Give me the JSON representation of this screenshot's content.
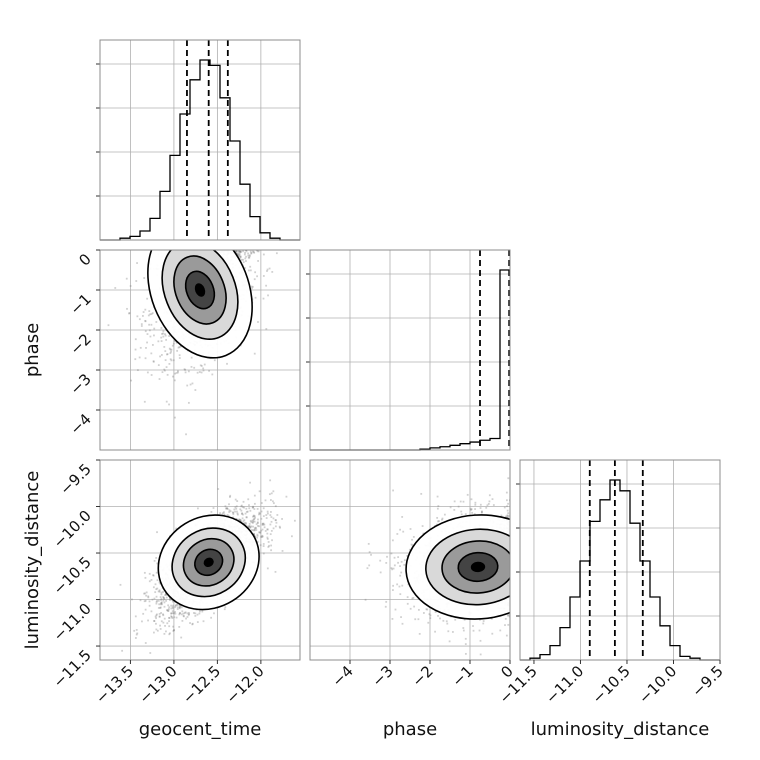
{
  "chart_data": {
    "type": "corner",
    "title": "",
    "parameters": [
      "geocent_time",
      "phase",
      "luminosity_distance"
    ],
    "ranges": {
      "geocent_time": [
        -13.85,
        -11.55
      ],
      "phase": [
        -5.0,
        0.0
      ],
      "luminosity_distance": [
        -11.65,
        -9.5
      ]
    },
    "ticks": {
      "geocent_time": [
        -13.5,
        -13.0,
        -12.5,
        -12.0
      ],
      "phase": [
        -4,
        -3,
        -2,
        -1,
        0
      ],
      "luminosity_distance": [
        -11.5,
        -11.0,
        -10.5,
        -10.0,
        -9.5
      ]
    },
    "tick_labels": {
      "geocent_time": [
        "−13.5",
        "−13.0",
        "−12.5",
        "−12.0"
      ],
      "phase": [
        "−4",
        "−3",
        "−2",
        "−1",
        "0"
      ],
      "luminosity_distance": [
        "−11.5",
        "−11.0",
        "−10.5",
        "−10.0",
        "−9.5"
      ]
    },
    "marginals": {
      "geocent_time": {
        "bin_edges": [
          -13.85,
          -13.735,
          -13.62,
          -13.505,
          -13.39,
          -13.275,
          -13.16,
          -13.045,
          -12.93,
          -12.815,
          -12.7,
          -12.585,
          -12.47,
          -12.355,
          -12.24,
          -12.125,
          -12.01,
          -11.895,
          -11.78,
          -11.665,
          -11.55
        ],
        "counts": [
          0,
          0,
          1,
          2,
          5,
          12,
          27,
          47,
          70,
          89,
          100,
          97,
          79,
          55,
          31,
          13,
          4,
          1,
          0,
          0
        ],
        "quantiles": [
          -12.85,
          -12.6,
          -12.38
        ]
      },
      "phase": {
        "bin_edges": [
          -5.0,
          -4.75,
          -4.5,
          -4.25,
          -4.0,
          -3.75,
          -3.5,
          -3.25,
          -3.0,
          -2.75,
          -2.5,
          -2.25,
          -2.0,
          -1.75,
          -1.5,
          -1.25,
          -1.0,
          -0.75,
          -0.5,
          -0.25,
          0.0
        ],
        "counts": [
          0,
          0,
          0,
          0,
          0,
          0,
          0,
          0,
          0,
          0,
          0,
          0.5,
          1.2,
          1.8,
          2.6,
          3.5,
          4.4,
          5.4,
          6.4,
          100
        ],
        "quantiles": [
          -0.75,
          -0.02
        ]
      },
      "luminosity_distance": {
        "bin_edges": [
          -11.65,
          -11.5425,
          -11.435,
          -11.3275,
          -11.22,
          -11.1125,
          -11.005,
          -10.8975,
          -10.79,
          -10.6825,
          -10.575,
          -10.4675,
          -10.36,
          -10.2525,
          -10.145,
          -10.0375,
          -9.93,
          -9.8225,
          -9.715,
          -9.6075,
          -9.5
        ],
        "counts": [
          0,
          1,
          3,
          8,
          18,
          35,
          55,
          77,
          89,
          100,
          94,
          76,
          55,
          35,
          19,
          8,
          2,
          1,
          0,
          0
        ],
        "quantiles": [
          -10.9,
          -10.63,
          -10.33
        ]
      }
    },
    "scatter_2d": [
      {
        "x": "geocent_time",
        "y": "phase",
        "center": [
          -12.7,
          -1.0
        ],
        "sigma": [
          0.28,
          0.9
        ],
        "corr": 0.3,
        "n": 1600
      },
      {
        "x": "geocent_time",
        "y": "luminosity_distance",
        "center": [
          -12.6,
          -10.6
        ],
        "sigma": [
          0.3,
          0.28
        ],
        "corr": 0.7,
        "n": 2600
      },
      {
        "x": "phase",
        "y": "luminosity_distance",
        "center": [
          -0.8,
          -10.65
        ],
        "sigma": [
          0.9,
          0.28
        ],
        "corr": 0.1,
        "n": 1700
      }
    ],
    "grid": true
  }
}
